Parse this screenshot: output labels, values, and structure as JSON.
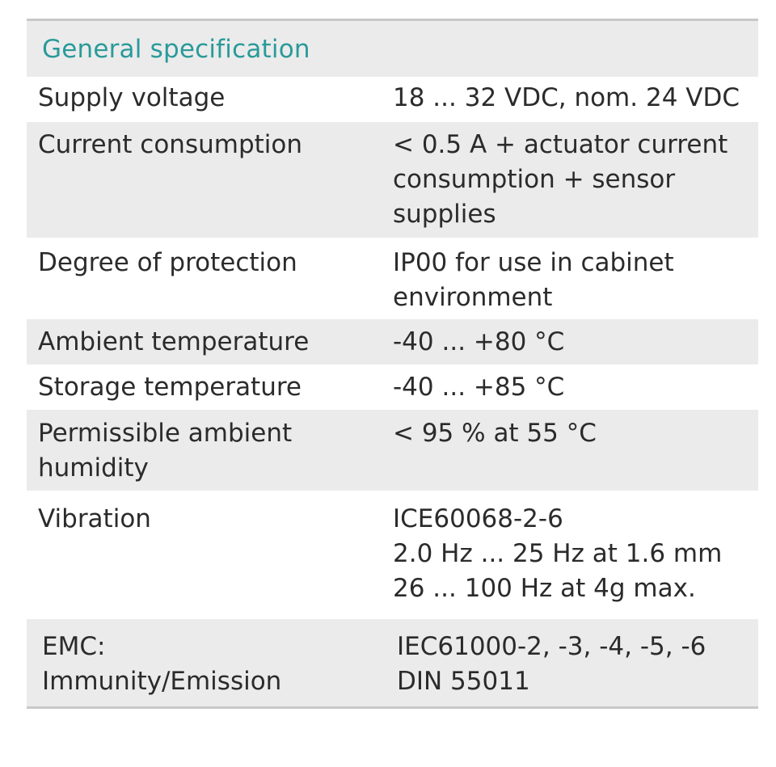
{
  "table": {
    "header": "General specification",
    "rows": [
      {
        "label": "Supply voltage",
        "value": "18 ... 32 VDC, nom. 24 VDC"
      },
      {
        "label": "Current consumption",
        "value": "< 0.5 A + actuator current\nconsumption + sensor\nsupplies"
      },
      {
        "label": "Degree of protection",
        "value": "IP00 for use in cabinet\nenvironment"
      },
      {
        "label": "Ambient temperature",
        "value": "-40 ... +80 °C"
      },
      {
        "label": "Storage temperature",
        "value": "-40 ... +85 °C"
      },
      {
        "label": "Permissible ambient\nhumidity",
        "value": "< 95 % at 55 °C"
      },
      {
        "label": "Vibration",
        "value": "ICE60068-2-6\n2.0 Hz ... 25 Hz at 1.6 mm\n26 ... 100 Hz at 4g max."
      },
      {
        "label": "EMC:\nImmunity/Emission",
        "value": "IEC61000-2, -3, -4, -5, -6\nDIN 55011"
      }
    ]
  }
}
